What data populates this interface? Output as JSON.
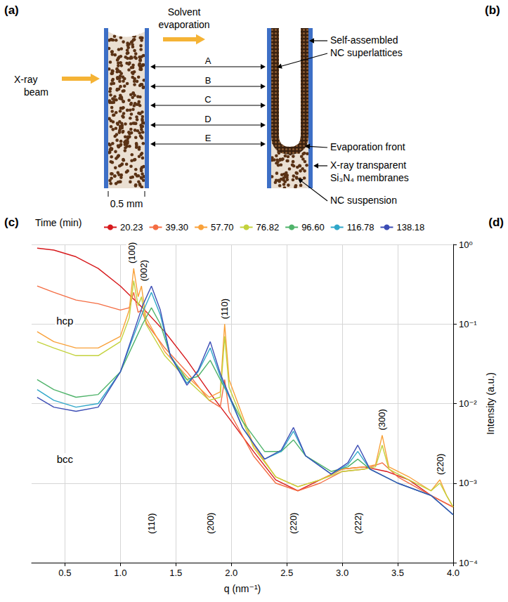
{
  "diagram": {
    "panel_label": "(a)",
    "beam_label": "X-ray beam",
    "evaporation_label": "Solvent evaporation",
    "width_label": "0.5 mm",
    "positions": [
      "A",
      "B",
      "C",
      "D",
      "E"
    ],
    "callouts": {
      "superlattices": "Self-assembled NC superlattices",
      "front": "Evaporation front",
      "membranes": "X-ray transparent Si₃N₄ membranes",
      "suspension": "NC suspension"
    }
  },
  "other_panel_labels": {
    "b": "(b)",
    "d": "(d)"
  },
  "chart_data": {
    "type": "line",
    "panel_label": "(c)",
    "xlabel": "q (nm⁻¹)",
    "ylabel": "Intensity (a.u.)",
    "legend_title": "Time (min)",
    "log": "y",
    "grid": true,
    "legend": "top",
    "xlim": [
      0.2,
      4.0
    ],
    "xticks": [
      0.5,
      {
        "value": 1,
        "label": "1.0"
      },
      1.5,
      {
        "value": 2,
        "label": "2.0"
      },
      2.5,
      {
        "value": 3,
        "label": "3.0"
      },
      3.5,
      {
        "value": 4,
        "label": "4.0"
      }
    ],
    "ylim": [
      0.0001,
      1
    ],
    "yticks": [
      {
        "value": 0.0001,
        "label": "10⁻⁴"
      },
      {
        "value": 0.001,
        "label": "10⁻³"
      },
      {
        "value": 0.01,
        "label": "10⁻²"
      },
      {
        "value": 0.1,
        "label": "10⁻¹"
      },
      {
        "value": 1,
        "label": "10⁰"
      }
    ],
    "series": [
      {
        "name": "20.23",
        "color": "#d7191c",
        "x": [
          0.25,
          0.4,
          0.6,
          0.8,
          1.0,
          1.2,
          1.4,
          1.6,
          1.8,
          2.0,
          2.2,
          2.4,
          2.6,
          2.8,
          3.0,
          3.2,
          3.4,
          3.6,
          3.8,
          4.0
        ],
        "values": [
          0.9,
          0.85,
          0.7,
          0.5,
          0.3,
          0.16,
          0.08,
          0.035,
          0.014,
          0.006,
          0.0025,
          0.0011,
          0.0008,
          0.0011,
          0.0015,
          0.0016,
          0.0014,
          0.0011,
          0.0007,
          0.0005
        ]
      },
      {
        "name": "39.30",
        "color": "#f46d43",
        "x": [
          0.25,
          0.4,
          0.6,
          0.8,
          1.0,
          1.08,
          1.12,
          1.16,
          1.19,
          1.24,
          1.4,
          1.6,
          1.8,
          1.9,
          1.94,
          1.98,
          2.2,
          2.4,
          2.6,
          2.8,
          3.0,
          3.2,
          3.36,
          3.5,
          3.8,
          4.0
        ],
        "values": [
          0.3,
          0.25,
          0.2,
          0.18,
          0.15,
          0.16,
          0.25,
          0.14,
          0.15,
          0.1,
          0.05,
          0.025,
          0.011,
          0.009,
          0.02,
          0.008,
          0.0022,
          0.001,
          0.0008,
          0.001,
          0.0014,
          0.0015,
          0.0018,
          0.0012,
          0.0007,
          0.0005
        ]
      },
      {
        "name": "57.70",
        "color": "#f9a13a",
        "x": [
          0.25,
          0.4,
          0.6,
          0.8,
          1.0,
          1.08,
          1.12,
          1.16,
          1.19,
          1.23,
          1.4,
          1.6,
          1.8,
          1.9,
          1.94,
          1.98,
          2.2,
          2.4,
          2.6,
          2.8,
          3.0,
          3.2,
          3.3,
          3.36,
          3.42,
          3.6,
          3.8,
          3.88,
          3.94,
          4.0
        ],
        "values": [
          0.08,
          0.06,
          0.05,
          0.05,
          0.07,
          0.15,
          0.5,
          0.22,
          0.3,
          0.12,
          0.045,
          0.022,
          0.012,
          0.014,
          0.1,
          0.02,
          0.003,
          0.0012,
          0.0009,
          0.0011,
          0.0015,
          0.0016,
          0.0017,
          0.004,
          0.0016,
          0.0012,
          0.0008,
          0.0011,
          0.0007,
          0.0005
        ]
      },
      {
        "name": "76.82",
        "color": "#c3d23c",
        "x": [
          0.25,
          0.4,
          0.6,
          0.8,
          1.0,
          1.08,
          1.12,
          1.16,
          1.19,
          1.23,
          1.4,
          1.6,
          1.8,
          1.9,
          1.94,
          1.98,
          2.2,
          2.4,
          2.6,
          2.8,
          3.0,
          3.2,
          3.3,
          3.36,
          3.42,
          3.6,
          3.8,
          3.88,
          3.94,
          4.0
        ],
        "values": [
          0.06,
          0.05,
          0.04,
          0.04,
          0.06,
          0.12,
          0.35,
          0.17,
          0.22,
          0.1,
          0.04,
          0.02,
          0.011,
          0.012,
          0.07,
          0.016,
          0.0028,
          0.0012,
          0.0009,
          0.0011,
          0.0014,
          0.0015,
          0.0016,
          0.003,
          0.0015,
          0.0011,
          0.0008,
          0.001,
          0.0007,
          0.0005
        ]
      },
      {
        "name": "96.60",
        "color": "#4fb36a",
        "x": [
          0.25,
          0.4,
          0.6,
          0.8,
          1.0,
          1.1,
          1.2,
          1.28,
          1.36,
          1.45,
          1.6,
          1.7,
          1.81,
          1.9,
          2.1,
          2.3,
          2.45,
          2.56,
          2.67,
          2.9,
          3.05,
          3.14,
          3.25,
          3.5,
          3.8,
          4.0
        ],
        "values": [
          0.02,
          0.015,
          0.012,
          0.013,
          0.025,
          0.05,
          0.1,
          0.16,
          0.1,
          0.04,
          0.02,
          0.022,
          0.035,
          0.02,
          0.006,
          0.0025,
          0.0025,
          0.0035,
          0.0022,
          0.0014,
          0.0016,
          0.002,
          0.0015,
          0.001,
          0.0007,
          0.0004
        ]
      },
      {
        "name": "116.78",
        "color": "#2fa7c9",
        "x": [
          0.25,
          0.4,
          0.6,
          0.8,
          1.0,
          1.1,
          1.2,
          1.28,
          1.36,
          1.45,
          1.6,
          1.7,
          1.81,
          1.9,
          2.1,
          2.3,
          2.45,
          2.56,
          2.67,
          2.9,
          3.05,
          3.14,
          3.25,
          3.5,
          3.8,
          4.0
        ],
        "values": [
          0.015,
          0.011,
          0.009,
          0.01,
          0.025,
          0.06,
          0.14,
          0.25,
          0.13,
          0.04,
          0.018,
          0.025,
          0.05,
          0.022,
          0.005,
          0.002,
          0.0025,
          0.0045,
          0.0022,
          0.0013,
          0.0017,
          0.0025,
          0.0015,
          0.001,
          0.0007,
          0.0004
        ]
      },
      {
        "name": "138.18",
        "color": "#3c4db5",
        "x": [
          0.25,
          0.4,
          0.6,
          0.8,
          1.0,
          1.1,
          1.2,
          1.28,
          1.36,
          1.45,
          1.6,
          1.7,
          1.81,
          1.9,
          2.1,
          2.3,
          2.45,
          2.56,
          2.67,
          2.9,
          3.05,
          3.14,
          3.25,
          3.5,
          3.8,
          4.0
        ],
        "values": [
          0.012,
          0.009,
          0.008,
          0.009,
          0.025,
          0.065,
          0.17,
          0.3,
          0.15,
          0.04,
          0.017,
          0.026,
          0.06,
          0.024,
          0.005,
          0.002,
          0.0026,
          0.005,
          0.0022,
          0.0013,
          0.0018,
          0.003,
          0.0015,
          0.001,
          0.0007,
          0.0004
        ]
      }
    ],
    "annotations": [
      {
        "text": "(100)",
        "x": 1.12,
        "y": 0.5
      },
      {
        "text": "(002)",
        "x": 1.19,
        "y": 0.3
      },
      {
        "text": "(110)",
        "x": 1.94,
        "y": 0.1
      },
      {
        "text": "(300)",
        "x": 3.36,
        "y": 0.004
      },
      {
        "text": "(220)",
        "x": 3.88,
        "y": 0.0011
      },
      {
        "text": "(110)",
        "x": 1.28,
        "y": 0.0002
      },
      {
        "text": "(200)",
        "x": 1.81,
        "y": 0.0002
      },
      {
        "text": "(220)",
        "x": 2.56,
        "y": 0.0002
      },
      {
        "text": "(222)",
        "x": 3.14,
        "y": 0.0002
      }
    ],
    "phase_labels": [
      {
        "text": "hcp",
        "x": 0.5,
        "y": 0.11
      },
      {
        "text": "bcc",
        "x": 0.5,
        "y": 0.002
      }
    ]
  }
}
